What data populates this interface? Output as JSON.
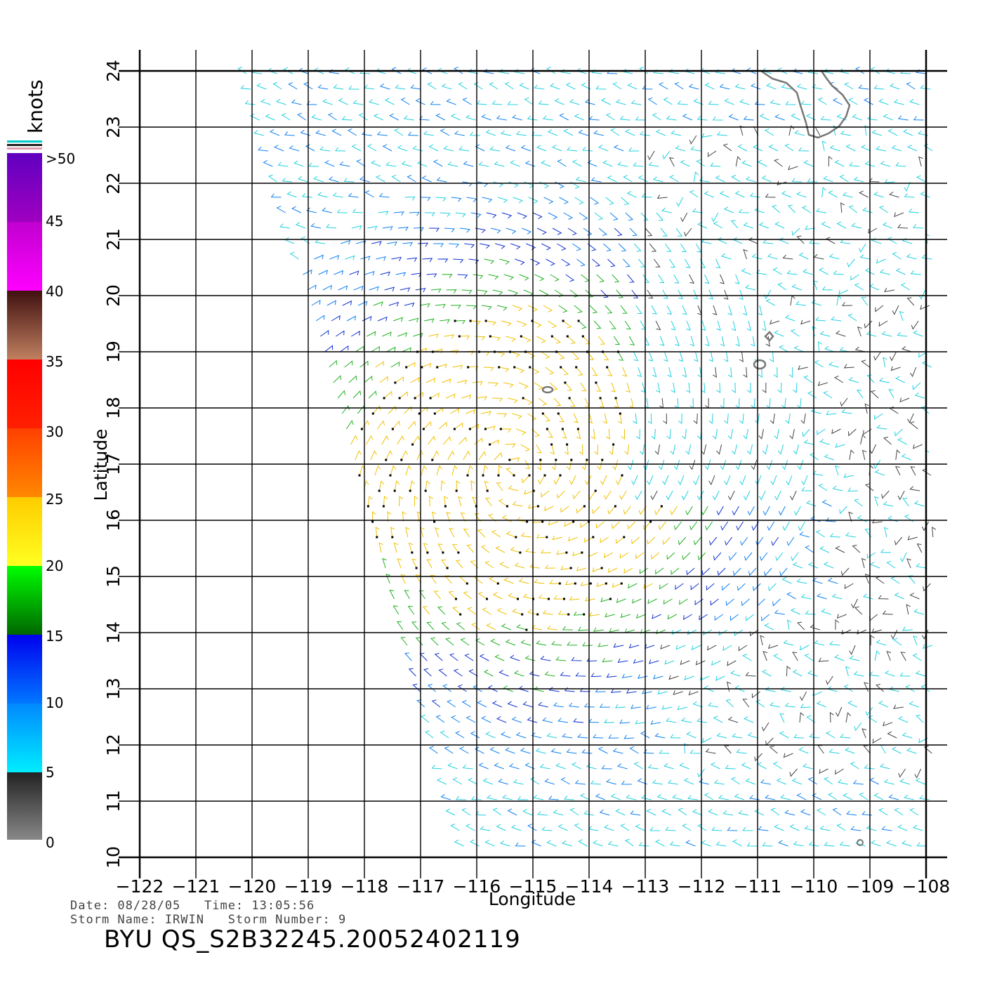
{
  "colorbar": {
    "unit_label": "knots",
    "ticks": [
      ">50",
      "45",
      "40",
      "35",
      "30",
      "25",
      "20",
      "15",
      "10",
      "5",
      "0"
    ],
    "colors": {
      "0-5": [
        "#888888",
        "#222222"
      ],
      "5-10": [
        "#00eeff",
        "#0088ff"
      ],
      "10-15": [
        "#0077ff",
        "#0000ee"
      ],
      "15-20": [
        "#006600",
        "#00ff00"
      ],
      "20-25": [
        "#ffff20",
        "#ffcc00"
      ],
      "25-30": [
        "#ff8800",
        "#ff4000"
      ],
      "30-35": [
        "#ff2000",
        "#ff0000"
      ],
      "35-40": [
        "#c08060",
        "#401010"
      ],
      "40-45": [
        "#ff00ff",
        "#c000d0"
      ],
      "45-50": [
        "#a000c0",
        "#6000c0"
      ]
    }
  },
  "map": {
    "x_axis_label": "Longitude",
    "y_axis_label": "Latitude",
    "lon_ticks": [
      "−122",
      "−121",
      "−120",
      "−119",
      "−118",
      "−117",
      "−116",
      "−115",
      "−114",
      "−113",
      "−112",
      "−111",
      "−110",
      "−109",
      "−108"
    ],
    "lat_ticks": [
      "10",
      "11",
      "12",
      "13",
      "14",
      "15",
      "16",
      "17",
      "18",
      "19",
      "20",
      "21",
      "22",
      "23",
      "24"
    ],
    "lon_range": [
      -122,
      -108
    ],
    "lat_range": [
      10,
      24
    ],
    "storm_center": {
      "lon": -115.3,
      "lat": 16.9
    },
    "peak_wind_knots": 24
  },
  "footer": {
    "date_line": "Date: 08/28/05   Time: 13:05:56",
    "storm_line": "Storm Name: IRWIN   Storm Number: 9",
    "title": "BYU QS_S2B32245.20052402119"
  }
}
